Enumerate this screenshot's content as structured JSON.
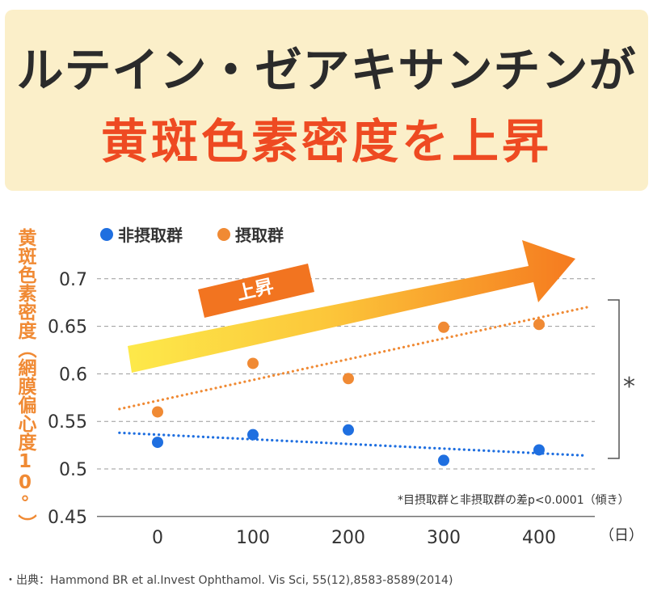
{
  "header": {
    "line1": "ルテイン・ゼアキサンチンが",
    "line2": "黄斑色素密度を上昇"
  },
  "arrow_label": "上昇",
  "significance_mark": "*",
  "footnote": "*目摂取群と非摂取群の差p<0.0001（傾き）",
  "source": "・出典：Hammond BR et al.Invest Ophthamol. Vis Sci, 55(12),8583-8589(2014)",
  "colors": {
    "orange": "#f08a34",
    "blue": "#1f6fe0",
    "title_red": "#ee4a22",
    "arrow_yellow": "#fcd83a"
  },
  "chart_data": {
    "type": "scatter",
    "ylabel": "黄斑色素密度（網膜偏心度10°）",
    "xunit": "（日）",
    "xticks": [
      "0",
      "100",
      "200",
      "300",
      "400"
    ],
    "yticks": [
      "0.45",
      "0.5",
      "0.55",
      "0.6",
      "0.65",
      "0.7"
    ],
    "ylim": [
      0.45,
      0.7
    ],
    "grid": true,
    "legend_position": "top-left",
    "series": [
      {
        "name": "非摂取群",
        "color": "#1f6fe0",
        "x": [
          0,
          100,
          200,
          300,
          400
        ],
        "y": [
          0.528,
          0.536,
          0.541,
          0.509,
          0.52
        ],
        "trend": [
          [
            -40,
            0.538
          ],
          [
            450,
            0.514
          ]
        ]
      },
      {
        "name": "摂取群",
        "color": "#f08a34",
        "x": [
          0,
          100,
          200,
          300,
          400
        ],
        "y": [
          0.56,
          0.611,
          0.595,
          0.649,
          0.652
        ],
        "trend": [
          [
            -40,
            0.563
          ],
          [
            450,
            0.67
          ]
        ]
      }
    ]
  }
}
